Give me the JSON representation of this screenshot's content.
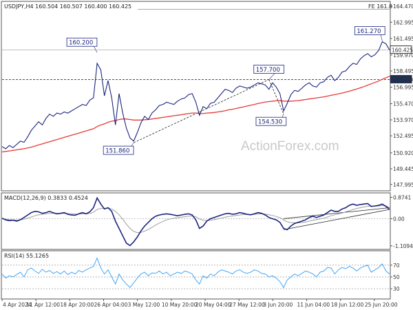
{
  "chart_data": [
    {
      "type": "line",
      "title": "USDJPY,H4  160.504 160.507 160.400 160.425",
      "corner_label": "FE 161.8",
      "watermark": "ActionForex.com",
      "price_axis_ticks": [
        "164.470",
        "162.995",
        "161.495",
        "159.970",
        "158.495",
        "156.995",
        "155.470",
        "153.970",
        "152.495",
        "150.920",
        "149.445",
        "147.995"
      ],
      "price_axis_values": [
        164.47,
        162.995,
        161.495,
        159.97,
        158.495,
        156.995,
        155.47,
        153.97,
        152.495,
        150.92,
        149.445,
        147.995
      ],
      "ylim": [
        147.6,
        164.8
      ],
      "current_price": {
        "label": "160.425",
        "value": 160.425
      },
      "support_level": {
        "label": "157.700",
        "value": 157.7
      },
      "fe_level": {
        "value": 164.2
      },
      "x_ticks": [
        "4 Apr 2024",
        "11 Apr 12:00",
        "18 Apr 20:00",
        "26 Apr 04:00",
        "3 May 12:00",
        "10 May 20:00",
        "20 May 04:00",
        "27 May 12:00",
        "3 Jun 20:00",
        "11 Jun 04:00",
        "18 Jun 12:00",
        "25 Jun 20:00"
      ],
      "series": [
        {
          "color": "#1a237e",
          "values": [
            151.5,
            151.3,
            151.6,
            151.4,
            151.7,
            152.0,
            151.9,
            152.4,
            153.0,
            153.4,
            153.8,
            153.5,
            154.1,
            154.5,
            154.3,
            154.6,
            154.5,
            154.7,
            154.6,
            154.8,
            155.0,
            155.2,
            155.4,
            155.3,
            155.8,
            156.0,
            159.2,
            158.6,
            156.2,
            157.6,
            156.0,
            153.5,
            156.4,
            154.6,
            153.2,
            152.3,
            152.0,
            152.8,
            153.7,
            154.3,
            154.0,
            154.6,
            154.9,
            155.3,
            155.4,
            155.6,
            155.5,
            155.4,
            155.7,
            155.9,
            156.0,
            156.3,
            156.4,
            155.6,
            154.4,
            155.2,
            155.0,
            155.5,
            155.6,
            156.0,
            156.4,
            156.8,
            156.7,
            156.5,
            156.9,
            157.1,
            157.0,
            156.9,
            157.0,
            157.2,
            157.4,
            157.3,
            157.2,
            156.8,
            157.4,
            157.0,
            156.4,
            154.8,
            155.5,
            156.3,
            156.7,
            156.6,
            156.9,
            157.2,
            157.4,
            157.1,
            157.0,
            157.4,
            157.5,
            157.9,
            158.1,
            157.6,
            157.9,
            158.4,
            158.5,
            158.9,
            159.2,
            159.1,
            159.6,
            159.9,
            160.1,
            159.8,
            160.0,
            160.4,
            161.2,
            161.0,
            160.43
          ]
        },
        {
          "color": "#e53935",
          "values": [
            151.0,
            151.05,
            151.1,
            151.15,
            151.2,
            151.25,
            151.3,
            151.38,
            151.45,
            151.55,
            151.65,
            151.75,
            151.85,
            151.95,
            152.05,
            152.15,
            152.25,
            152.35,
            152.45,
            152.55,
            152.65,
            152.75,
            152.85,
            152.95,
            153.05,
            153.15,
            153.35,
            153.5,
            153.6,
            153.75,
            153.85,
            153.9,
            154.0,
            154.05,
            154.05,
            154.0,
            153.95,
            153.95,
            153.95,
            153.98,
            154.0,
            154.05,
            154.1,
            154.15,
            154.2,
            154.25,
            154.3,
            154.35,
            154.4,
            154.45,
            154.5,
            154.55,
            154.6,
            154.6,
            154.55,
            154.55,
            154.6,
            154.62,
            154.65,
            154.7,
            154.75,
            154.82,
            154.9,
            154.95,
            155.02,
            155.1,
            155.17,
            155.25,
            155.32,
            155.4,
            155.48,
            155.55,
            155.62,
            155.66,
            155.7,
            155.73,
            155.74,
            155.71,
            155.7,
            155.7,
            155.72,
            155.75,
            155.8,
            155.85,
            155.9,
            155.95,
            156.0,
            156.05,
            156.1,
            156.17,
            156.24,
            156.3,
            156.37,
            156.45,
            156.53,
            156.62,
            156.72,
            156.82,
            156.93,
            157.05,
            157.18,
            157.3,
            157.43,
            157.56,
            157.72,
            157.86,
            158.0
          ]
        }
      ],
      "annotations": [
        {
          "label": "160.200",
          "value": 160.2,
          "index": 26
        },
        {
          "label": "151.860",
          "value": 151.86,
          "index": 36
        },
        {
          "label": "157.700",
          "value": 157.7,
          "index": 73
        },
        {
          "label": "154.530",
          "value": 154.53,
          "index": 77
        },
        {
          "label": "161.270",
          "value": 161.27,
          "index": 104
        }
      ],
      "trendlines": [
        {
          "from": [
            36,
            151.86
          ],
          "to": [
            73,
            157.7
          ]
        },
        {
          "from": [
            73,
            157.7
          ],
          "to": [
            77,
            154.53
          ]
        }
      ]
    },
    {
      "type": "line",
      "title": "MACD(12,26,9) 0.3833 0.4524",
      "axis_ticks": [
        "0.8741",
        "0.00",
        "-1.1094"
      ],
      "axis_values": [
        0.8741,
        0.0,
        -1.1094
      ],
      "ylim": [
        -1.2,
        1.0
      ],
      "series": [
        {
          "color": "#1a237e",
          "values": [
            0.02,
            -0.05,
            -0.08,
            -0.06,
            -0.1,
            -0.04,
            0.05,
            0.15,
            0.25,
            0.3,
            0.28,
            0.22,
            0.25,
            0.3,
            0.24,
            0.2,
            0.22,
            0.25,
            0.18,
            0.15,
            0.14,
            0.2,
            0.25,
            0.2,
            0.28,
            0.45,
            0.85,
            0.6,
            0.4,
            0.45,
            0.3,
            -0.1,
            -0.4,
            -0.7,
            -1.0,
            -1.1,
            -0.95,
            -0.75,
            -0.5,
            -0.3,
            -0.15,
            0.0,
            0.1,
            0.15,
            0.18,
            0.2,
            0.18,
            0.15,
            0.12,
            0.15,
            0.18,
            0.2,
            0.15,
            -0.05,
            -0.4,
            -0.3,
            -0.1,
            0.0,
            0.05,
            0.1,
            0.15,
            0.2,
            0.22,
            0.18,
            0.2,
            0.25,
            0.22,
            0.18,
            0.16,
            0.2,
            0.25,
            0.22,
            0.15,
            0.05,
            0.0,
            -0.05,
            -0.15,
            -0.4,
            -0.45,
            -0.3,
            -0.2,
            -0.15,
            -0.1,
            -0.05,
            0.05,
            0.1,
            0.05,
            0.1,
            0.15,
            0.25,
            0.35,
            0.3,
            0.3,
            0.4,
            0.45,
            0.55,
            0.6,
            0.55,
            0.58,
            0.6,
            0.62,
            0.5,
            0.52,
            0.55,
            0.6,
            0.5,
            0.38
          ]
        },
        {
          "color": "#9e9e9e",
          "values": [
            0.0,
            -0.02,
            -0.04,
            -0.05,
            -0.06,
            -0.05,
            -0.02,
            0.02,
            0.07,
            0.12,
            0.16,
            0.18,
            0.2,
            0.22,
            0.22,
            0.22,
            0.22,
            0.22,
            0.21,
            0.2,
            0.19,
            0.19,
            0.2,
            0.2,
            0.21,
            0.26,
            0.38,
            0.42,
            0.42,
            0.43,
            0.4,
            0.3,
            0.16,
            -0.02,
            -0.22,
            -0.4,
            -0.52,
            -0.57,
            -0.56,
            -0.51,
            -0.44,
            -0.35,
            -0.26,
            -0.18,
            -0.11,
            -0.05,
            -0.01,
            0.02,
            0.04,
            0.06,
            0.08,
            0.1,
            0.11,
            0.08,
            -0.01,
            -0.07,
            -0.08,
            -0.06,
            -0.04,
            -0.01,
            0.02,
            0.06,
            0.09,
            0.11,
            0.13,
            0.15,
            0.17,
            0.17,
            0.17,
            0.18,
            0.19,
            0.2,
            0.19,
            0.16,
            0.13,
            0.09,
            0.04,
            -0.05,
            -0.13,
            -0.16,
            -0.17,
            -0.17,
            -0.16,
            -0.14,
            -0.1,
            -0.06,
            -0.04,
            -0.01,
            0.02,
            0.07,
            0.12,
            0.16,
            0.19,
            0.23,
            0.28,
            0.33,
            0.38,
            0.42,
            0.45,
            0.48,
            0.51,
            0.51,
            0.51,
            0.52,
            0.54,
            0.53,
            0.45
          ]
        }
      ],
      "trendlines": [
        {
          "from": [
            77,
            0.0
          ],
          "to": [
            106,
            0.45
          ]
        },
        {
          "from": [
            77,
            -0.45
          ],
          "to": [
            106,
            0.38
          ]
        }
      ]
    },
    {
      "type": "line",
      "title": "RSI(14) 55.1265",
      "axis_ticks": [
        "70",
        "50",
        "30"
      ],
      "axis_values": [
        70,
        50,
        30
      ],
      "ylim": [
        15,
        92
      ],
      "series": [
        {
          "color": "#42a5f5",
          "values": [
            55,
            48,
            52,
            50,
            54,
            58,
            50,
            62,
            65,
            60,
            56,
            63,
            58,
            61,
            56,
            59,
            55,
            60,
            54,
            58,
            55,
            61,
            58,
            62,
            65,
            68,
            82,
            65,
            55,
            62,
            50,
            38,
            55,
            45,
            38,
            32,
            40,
            48,
            55,
            58,
            52,
            57,
            56,
            60,
            55,
            58,
            52,
            55,
            58,
            56,
            60,
            58,
            55,
            45,
            38,
            52,
            48,
            55,
            52,
            58,
            62,
            60,
            58,
            55,
            60,
            62,
            58,
            56,
            58,
            62,
            60,
            56,
            55,
            50,
            52,
            48,
            42,
            32,
            45,
            50,
            55,
            52,
            56,
            60,
            58,
            55,
            50,
            58,
            60,
            66,
            65,
            55,
            62,
            66,
            64,
            68,
            65,
            60,
            65,
            68,
            70,
            58,
            62,
            66,
            72,
            60,
            55
          ]
        }
      ]
    }
  ]
}
